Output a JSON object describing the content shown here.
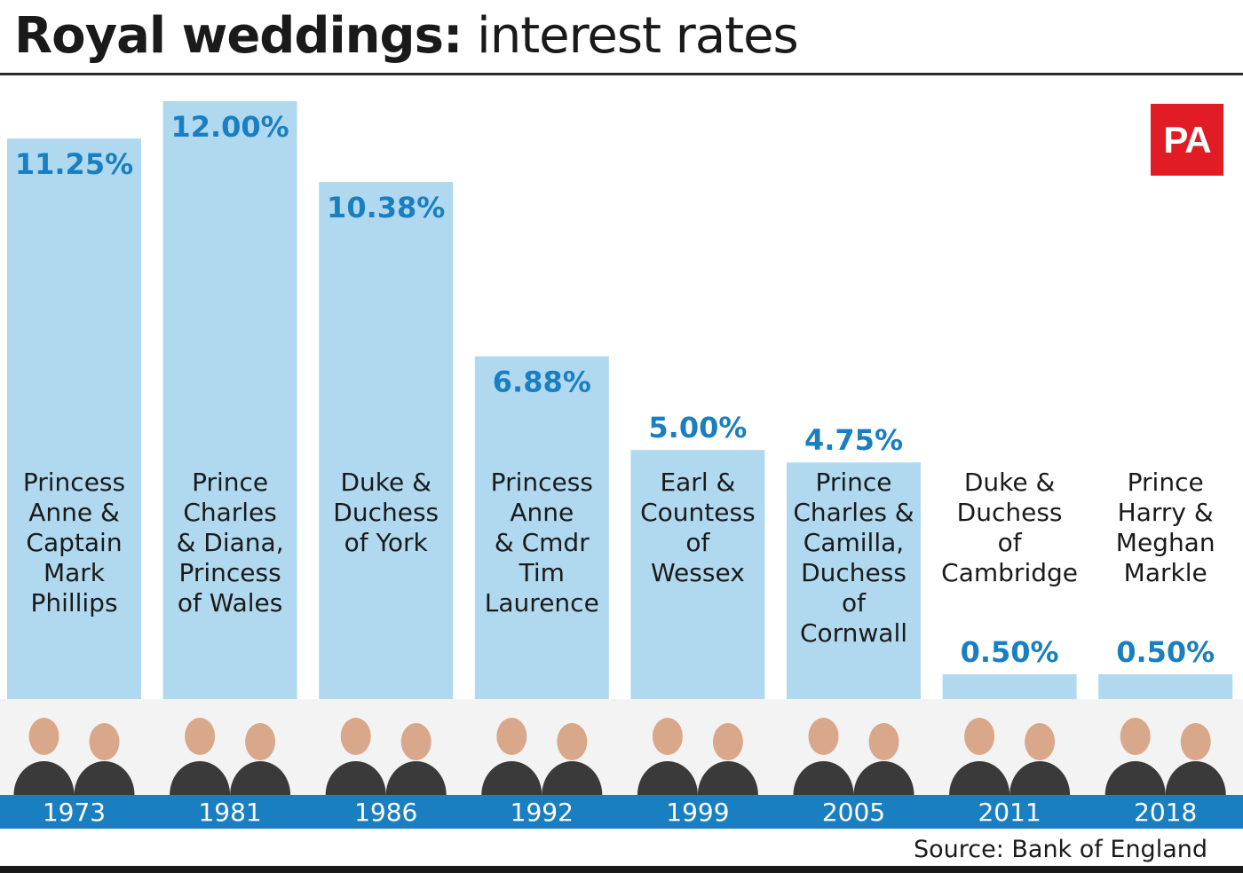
{
  "title": {
    "bold": "Royal weddings:",
    "light": "interest rates"
  },
  "logo": "PA",
  "source": "Source: Bank of England",
  "colors": {
    "bar": "#b0d9f0",
    "value": "#1a7fc0",
    "axis_band": "#1a7fc0",
    "logo": "#e21c25"
  },
  "chart_data": {
    "type": "bar",
    "title": "Royal weddings: interest rates",
    "categories": [
      "1973",
      "1981",
      "1986",
      "1992",
      "1999",
      "2005",
      "2011",
      "2018"
    ],
    "values": [
      11.25,
      12.0,
      10.38,
      6.88,
      5.0,
      4.75,
      0.5,
      0.5
    ],
    "value_labels": [
      "11.25%",
      "12.00%",
      "10.38%",
      "6.88%",
      "5.00%",
      "4.75%",
      "0.50%",
      "0.50%"
    ],
    "couples": [
      [
        "Princess",
        "Anne &",
        "Captain",
        "Mark",
        "Phillips"
      ],
      [
        "Prince",
        "Charles",
        "& Diana,",
        "Princess",
        "of Wales"
      ],
      [
        "Duke &",
        "Duchess",
        "of York"
      ],
      [
        "Princess",
        "Anne",
        "& Cmdr",
        "Tim",
        "Laurence"
      ],
      [
        "Earl &",
        "Countess",
        "of",
        "Wessex"
      ],
      [
        "Prince",
        "Charles &",
        "Camilla,",
        "Duchess",
        "of",
        "Cornwall"
      ],
      [
        "Duke &",
        "Duchess",
        "of",
        "Cambridge"
      ],
      [
        "Prince",
        "Harry &",
        "Meghan",
        "Markle"
      ]
    ],
    "ylim": [
      0,
      12
    ],
    "grid": false,
    "legend": "none"
  }
}
